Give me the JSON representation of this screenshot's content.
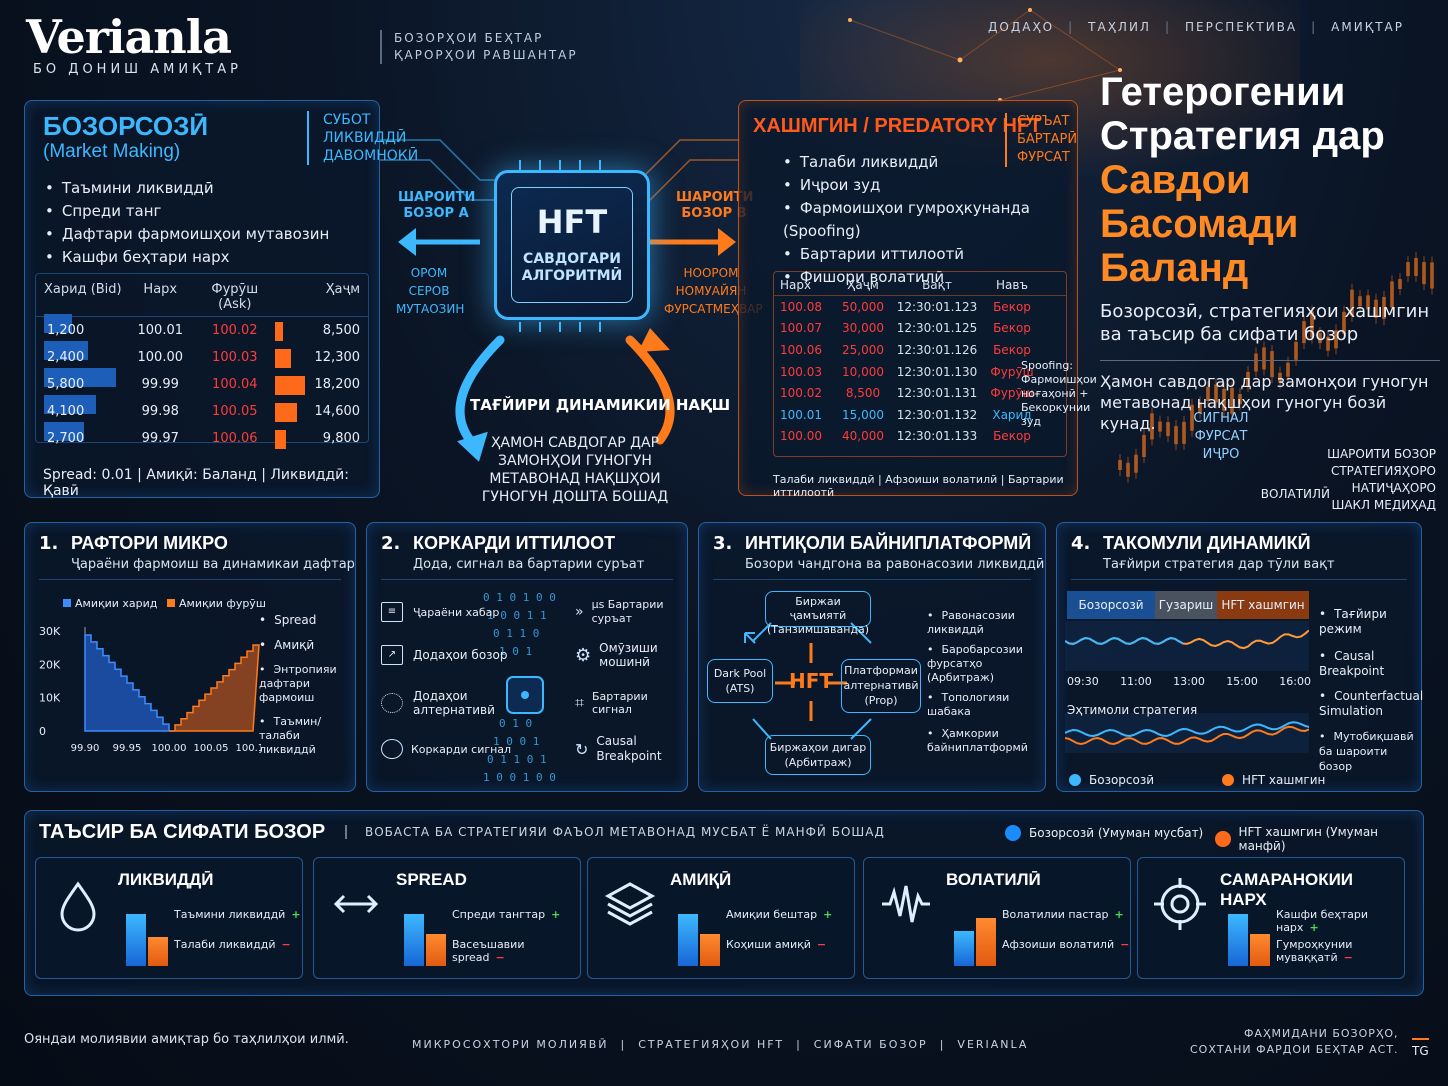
{
  "brand": {
    "logo": "Verianla",
    "sub": "БО ДОНИШ АМИҚТАР",
    "tagline1": "БОЗОРҲОИ БЕҲТАР",
    "tagline2": "ҚАРОРҲОИ РАВШАНТАР"
  },
  "nav": [
    "ДОДАҲО",
    "ТАҲЛИЛ",
    "ПЕРСПЕКТИВА",
    "АМИҚТАР"
  ],
  "hero": {
    "line1": "Гетерогении",
    "line2": "Стратегия дар",
    "line3": "Савдои Басомади",
    "line4": "Баланд",
    "subtitle": "Бозорсозӣ, стратегияҳои хашмгин ва таъсир ба сифати бозор",
    "note": "Ҳамон савдогар дар замонҳои гуногун метавонад нақшҳои гуногун бозӣ кунад."
  },
  "market_making": {
    "title": "БОЗОРСОЗӢ",
    "title2": "(Market Making)",
    "badge1": "СУБОТ",
    "badge2": "ЛИКВИДДӢ",
    "badge3": "ДАВОМНОКӢ",
    "bullets": [
      "Таъмини ликвиддӣ",
      "Спреди танг",
      "Дафтари фармоишҳои мутавозин",
      "Кашфи беҳтари нарх"
    ],
    "headers": {
      "bid": "Харид (Bid)",
      "price": "Нарх",
      "ask": "Фурӯш (Ask)",
      "vol": "Ҳаҷм"
    },
    "rows": [
      {
        "bid": "1,200",
        "bidw": 0.35,
        "price": "100.01",
        "ask": "100.02",
        "askw": 0.25,
        "vol": "8,500"
      },
      {
        "bid": "2,400",
        "bidw": 0.55,
        "price": "100.00",
        "ask": "100.03",
        "askw": 0.5,
        "vol": "12,300"
      },
      {
        "bid": "5,800",
        "bidw": 0.9,
        "price": "99.99",
        "ask": "100.04",
        "askw": 0.95,
        "vol": "18,200"
      },
      {
        "bid": "4,100",
        "bidw": 0.65,
        "price": "99.98",
        "ask": "100.05",
        "askw": 0.7,
        "vol": "14,600"
      },
      {
        "bid": "2,700",
        "bidw": 0.5,
        "price": "99.97",
        "ask": "100.06",
        "askw": 0.35,
        "vol": "9,800"
      }
    ],
    "footer": "Spread: 0.01  |  Амиқӣ: Баланд  |  Ликвиддӣ: Қавӣ"
  },
  "chip": {
    "title": "HFT",
    "sub1": "САВДОГАРИ",
    "sub2": "АЛГОРИТМӢ",
    "left_state": "ШАРОИТИ БОЗОР А",
    "right_state": "ШАРОИТИ БОЗОР В",
    "left_small": "ОРОМ СЕРОВ МУТАОЗИН",
    "right_small": "НООРОМ НОМУАЙЯН ФУРСАТМЕҲВАР",
    "dynamics": "ТАҒЙИРИ ДИНАМИКИИ НАҚШ",
    "dynamics_sub": "ҲАМОН САВДОГАР ДАР ЗАМОНҲОИ ГУНОГУН МЕТАВОНАД НАҚШҲОИ ГУНОГУН ДОШТА БОШАД"
  },
  "predatory": {
    "title": "ХАШМГИН / PREDATORY HFT",
    "badge1": "СУРЪАТ",
    "badge2": "БАРТАРӢ",
    "badge3": "ФУРСАТ",
    "bullets": [
      "Талаби ликвиддӣ",
      "Иҷрои зуд",
      "Фармоишҳои гумроҳкунанда (Spoofing)",
      "Бартарии иттилоотӣ",
      "Фишори волатилӣ"
    ],
    "headers": {
      "price": "Нарх",
      "vol": "Ҳаҷм",
      "time": "Вақт",
      "type": "Навъ"
    },
    "rows": [
      {
        "price": "100.08",
        "vol": "50,000",
        "time": "12:30:01.123",
        "type": "Бекор",
        "c": "red"
      },
      {
        "price": "100.07",
        "vol": "30,000",
        "time": "12:30:01.125",
        "type": "Бекор",
        "c": "red"
      },
      {
        "price": "100.06",
        "vol": "25,000",
        "time": "12:30:01.126",
        "type": "Бекор",
        "c": "red"
      },
      {
        "price": "100.03",
        "vol": "10,000",
        "time": "12:30:01.130",
        "type": "Фурӯш",
        "c": "red"
      },
      {
        "price": "100.02",
        "vol": "8,500",
        "time": "12:30:01.131",
        "type": "Фурӯш",
        "c": "red"
      },
      {
        "price": "100.01",
        "vol": "15,000",
        "time": "12:30:01.132",
        "type": "Харид",
        "c": "blue"
      },
      {
        "price": "100.00",
        "vol": "40,000",
        "time": "12:30:01.133",
        "type": "Бекор",
        "c": "red"
      }
    ],
    "spoof_note": "Spoofing: Фармоишҳои ноғаҳонӣ + Бекоркунии зуд",
    "footer": "Талаби ликвиддӣ  |  Афзоиши волатилӣ  |  Бартарии иттилоотӣ"
  },
  "side": {
    "signal": "СИГНАЛ ФУРСАТ ИҶРО",
    "volatility": "ВОЛАТИЛӢ",
    "conditions": "ШАРОИТИ БОЗОР СТРАТЕГИЯҲОРО НАТИҶАҲОРО ШАКЛ МЕДИҲАД"
  },
  "card1": {
    "num": "1.",
    "title": "РАФТОРИ МИКРО",
    "sub": "Ҷараёни фармоиш ва динамикаи дафтар",
    "legend_bid": "Амиқии харид",
    "legend_ask": "Амиқии фурӯш",
    "yticks": [
      "30K",
      "20K",
      "10K",
      "0"
    ],
    "xticks": [
      "99.90",
      "99.95",
      "100.00",
      "100.05",
      "100.10"
    ],
    "bullets": [
      "Spread",
      "Амиқӣ",
      "Энтропияи дафтари фармоиш",
      "Таъмин/талаби ликвиддӣ"
    ]
  },
  "card2": {
    "num": "2.",
    "title": "КОРКАРДИ ИТТИЛООТ",
    "sub": "Дода, сигнал ва бартарии суръат",
    "items": [
      "Ҷараёни хабар",
      "Додаҳои бозор",
      "Додаҳои алтернативӣ",
      "Коркарди сигнал"
    ],
    "right_items": [
      "μs Бартарии суръат",
      "Омӯзиши мошинӣ",
      "Бартарии сигнал",
      "Causal Breakpoint"
    ]
  },
  "card3": {
    "num": "3.",
    "title": "ИНТИҚОЛИ БАЙНИПЛАТФОРМӢ",
    "sub": "Бозори чандгона ва равонасозии ликвиддӣ",
    "top": "Биржаи ҷамъиятӣ (Танзимшаванда)",
    "left": "Dark Pool (ATS)",
    "right": "Платформаи алтернативӣ (Prop)",
    "bottom": "Биржаҳои дигар (Арбитраж)",
    "center": "HFT",
    "bullets": [
      "Равонасозии ликвиддӣ",
      "Баробарсозии фурсатҳо (Арбитраж)",
      "Топологияи шабака",
      "Ҳамкории байниплатформӣ"
    ]
  },
  "card4": {
    "num": "4.",
    "title": "ТАКОМУЛИ ДИНАМИКӢ",
    "sub": "Тағйири стратегия дар тӯли вақт",
    "tabs": [
      "Бозорсозӣ",
      "Гузариш",
      "HFT хашмгин"
    ],
    "xticks": [
      "09:30",
      "11:00",
      "13:00",
      "15:00",
      "16:00"
    ],
    "prob_label": "Эҳтимоли стратегия",
    "legend_mm": "Бозорсозӣ",
    "legend_hft": "HFT хашмгин",
    "bullets": [
      "Тағйири режим",
      "Causal Breakpoint",
      "Counterfactual Simulation",
      "Мутобиқшавӣ ба шароити бозор"
    ]
  },
  "impact": {
    "title": "ТАЪСИР БА СИФАТИ БОЗОР",
    "sub": "ВОБАСТА БА СТРАТЕГИЯИ ФАЪОЛ МЕТАВОНАД МУСБАТ Ё МАНФӢ БОШАД",
    "legend_pos": "Бозорсозӣ (Умуман мусбат)",
    "legend_neg": "HFT хашмгин (Умуман манфӣ)",
    "metrics": [
      {
        "title": "ЛИКВИДДӢ",
        "l1": "Таъмини ликвиддӣ",
        "l2": "Талаби ликвиддӣ",
        "icon": "drop-icon",
        "b1": 0.82,
        "b2": 0.45
      },
      {
        "title": "SPREAD",
        "l1": "Спреди тангтар",
        "l2": "Васеъшавии spread",
        "icon": "arrows-icon",
        "b1": 0.82,
        "b2": 0.5
      },
      {
        "title": "АМИҚӢ",
        "l1": "Амиқии бештар",
        "l2": "Коҳиши амиқӣ",
        "icon": "layers-icon",
        "b1": 0.82,
        "b2": 0.5
      },
      {
        "title": "ВОЛАТИЛӢ",
        "l1": "Волатилии пастар",
        "l2": "Афзоиши волатилӣ",
        "icon": "wave-icon",
        "b1": 0.55,
        "b2": 0.75
      },
      {
        "title": "САМАРАНОКИИ НАРХ",
        "l1": "Кашфи беҳтари нарх",
        "l2": "Гумроҳкунии муваққатӣ",
        "icon": "target-icon",
        "b1": 0.82,
        "b2": 0.5
      }
    ]
  },
  "footer": {
    "left": "Ояндаи молиявии амиқтар бо таҳлилҳои илмӣ.",
    "center": [
      "МИКРОСОХТОРИ МОЛИЯВӢ",
      "СТРАТЕГИЯҲОИ HFT",
      "СИФАТИ БОЗОР",
      "VERIANLA"
    ],
    "right1": "ФАҲМИДАНИ БОЗОРҲО,",
    "right2": "СОХТАНИ ФАРДОИ БЕҲТАР АСТ.",
    "tg": "TG"
  },
  "colors": {
    "cyan": "#3db8ff",
    "orange": "#ff7a1a",
    "red": "#ff3b3b",
    "green": "#4ddb4d"
  }
}
